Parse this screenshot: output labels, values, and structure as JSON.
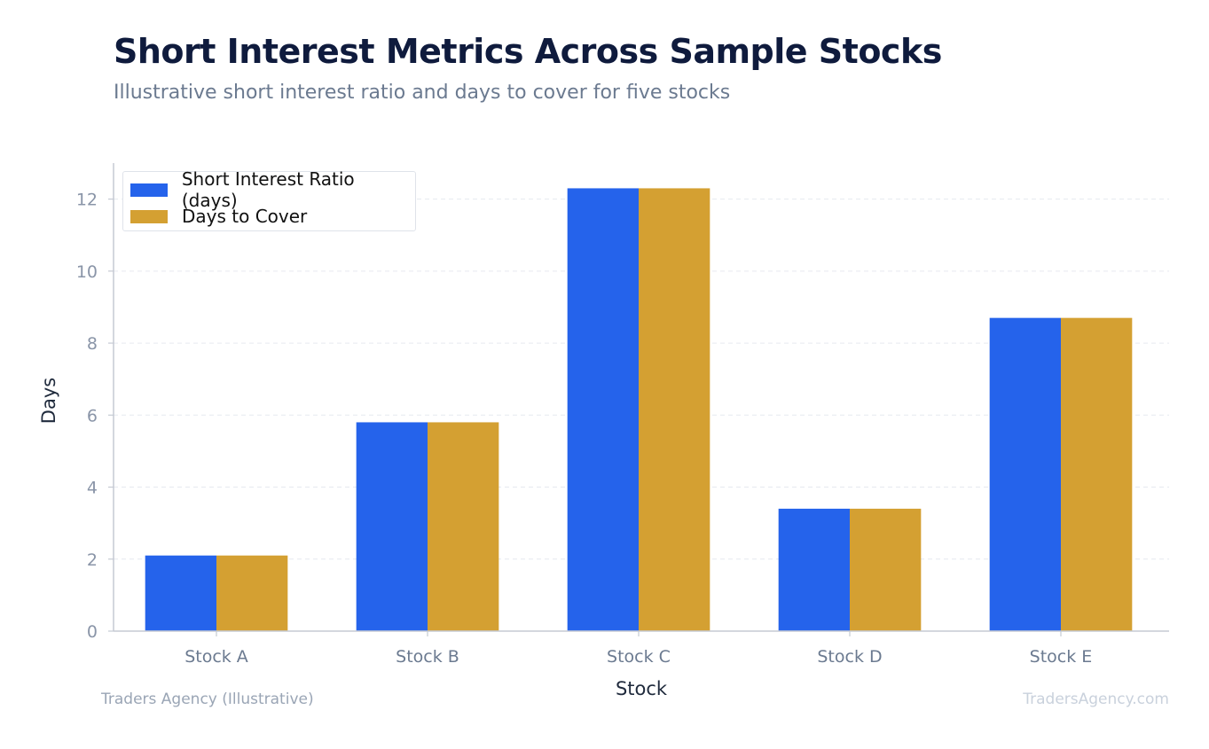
{
  "header": {
    "title": "Short Interest Metrics Across Sample Stocks",
    "subtitle": "Illustrative short interest ratio and days to cover for five stocks"
  },
  "footer": {
    "source": "Traders Agency (Illustrative)",
    "brand": "TradersAgency.com"
  },
  "colors": {
    "series_1": "#2563eb",
    "series_2": "#d4a032",
    "grid": "#e6e9ef",
    "axis": "#c5cad3",
    "tick_text": "#8a95a8"
  },
  "chart_data": {
    "type": "bar",
    "title": "Short Interest Metrics Across Sample Stocks",
    "subtitle": "Illustrative short interest ratio and days to cover for five stocks",
    "xlabel": "Stock",
    "ylabel": "Days",
    "categories": [
      "Stock A",
      "Stock B",
      "Stock C",
      "Stock D",
      "Stock E"
    ],
    "series": [
      {
        "name": "Short Interest Ratio (days)",
        "values": [
          2.1,
          5.8,
          12.3,
          3.4,
          8.7
        ]
      },
      {
        "name": "Days to Cover",
        "values": [
          2.1,
          5.8,
          12.3,
          3.4,
          8.7
        ]
      }
    ],
    "ylim": [
      0,
      13
    ],
    "yticks": [
      "0",
      "2",
      "4",
      "6",
      "8",
      "10",
      "12"
    ],
    "grid": true,
    "legend_position": "top-left"
  }
}
